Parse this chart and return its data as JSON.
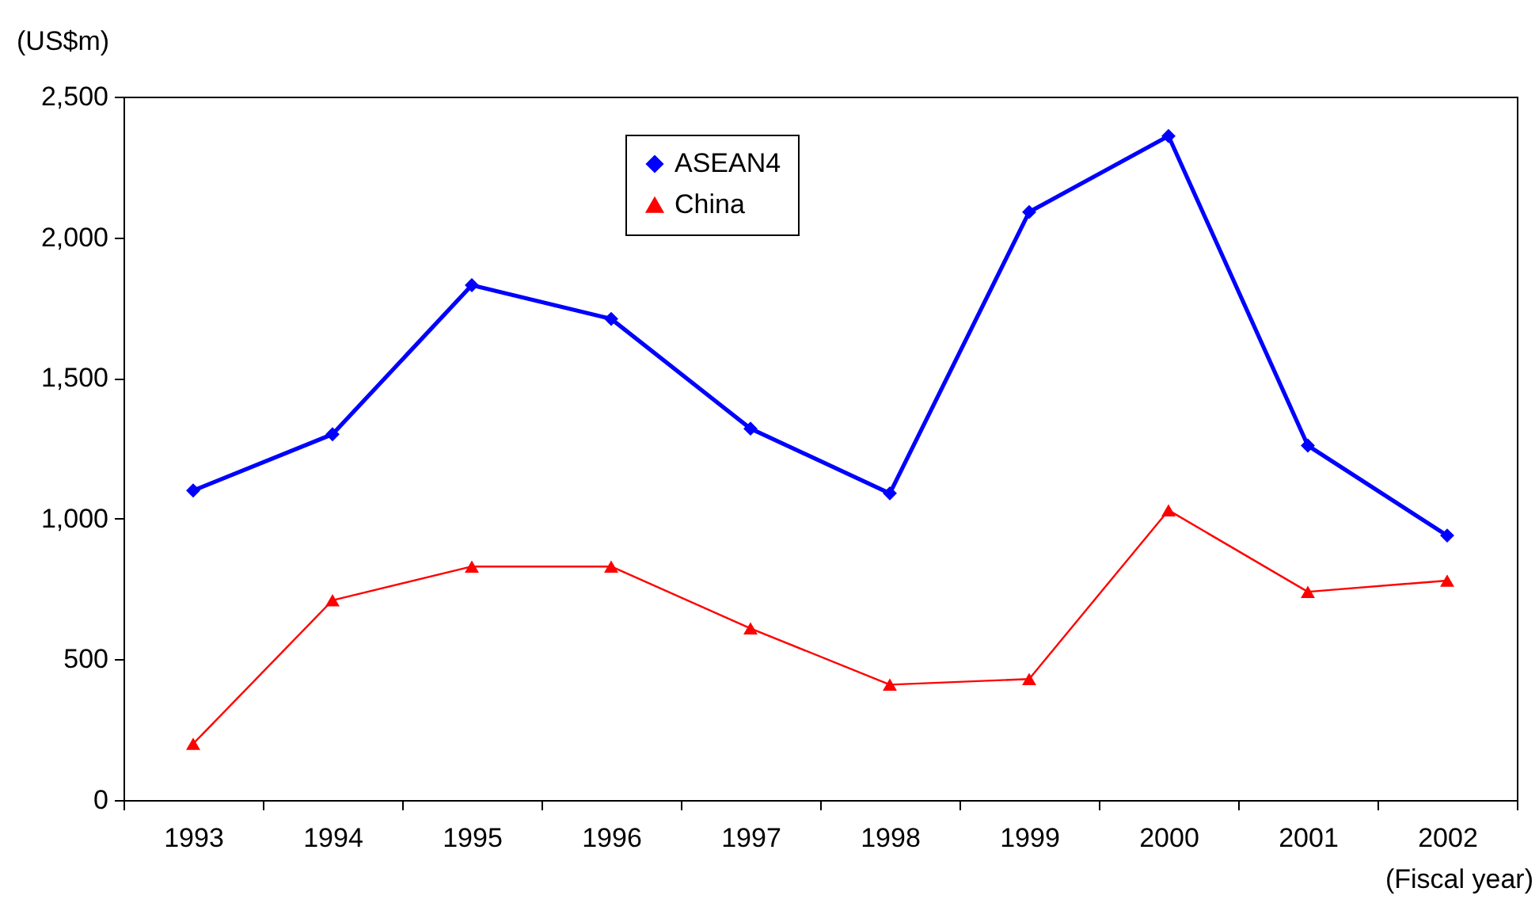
{
  "chart_data": {
    "type": "line",
    "ylabel": "(US$m)",
    "xlabel": "(Fiscal year)",
    "categories": [
      "1993",
      "1994",
      "1995",
      "1996",
      "1997",
      "1998",
      "1999",
      "2000",
      "2001",
      "2002"
    ],
    "series": [
      {
        "name": "ASEAN4",
        "color": "#0000ff",
        "marker": "diamond",
        "values": [
          1100,
          1300,
          1830,
          1710,
          1320,
          1090,
          2090,
          2360,
          1260,
          940
        ]
      },
      {
        "name": "China",
        "color": "#ff0000",
        "marker": "triangle",
        "values": [
          200,
          710,
          830,
          830,
          610,
          410,
          430,
          1030,
          740,
          780
        ]
      }
    ],
    "ylim": [
      0,
      2500
    ],
    "yticks": [
      0,
      {
        "value": 500,
        "label": "500"
      },
      {
        "value": 1000,
        "label": "1,000"
      },
      {
        "value": 1500,
        "label": "1,500"
      },
      {
        "value": 2000,
        "label": "2,000"
      },
      {
        "value": 2500,
        "label": "2,500"
      }
    ],
    "grid": false,
    "legend": "top",
    "line_style": "solid"
  }
}
